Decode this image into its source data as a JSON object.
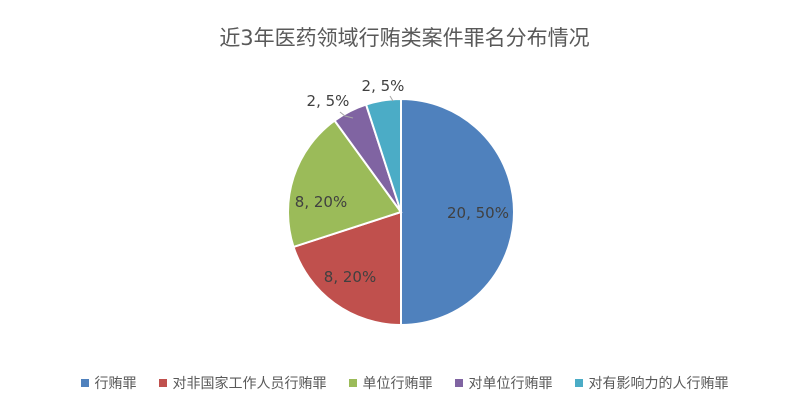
{
  "chart_data": {
    "type": "pie",
    "title": "近3年医药领域行贿类案件罪名分布情况",
    "categories": [
      "行贿罪",
      "对非国家工作人员行贿罪",
      "单位行贿罪",
      "对单位行贿罪",
      "对有影响力的人行贿罪"
    ],
    "values": [
      20,
      8,
      8,
      2,
      2
    ],
    "data_labels": [
      "20, 50%",
      "8, 20%",
      "8, 20%",
      "2, 5%",
      "2, 5%"
    ],
    "colors": [
      "#4f81bd",
      "#c0504d",
      "#9bbb59",
      "#8064a2",
      "#4bacc6"
    ],
    "legend_position": "bottom",
    "start_angle": "12 o'clock",
    "direction": "clockwise"
  }
}
